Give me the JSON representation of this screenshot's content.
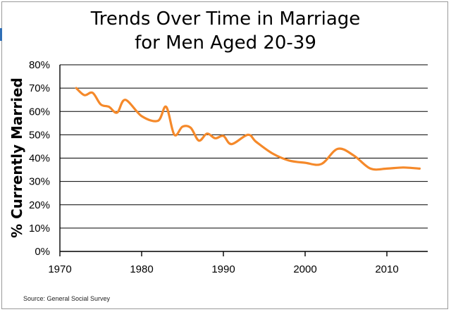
{
  "colors": {
    "line": "#f5892a",
    "grid": "#000000",
    "frame": "#9a9a9a"
  },
  "chart_data": {
    "type": "line",
    "title_lines": [
      "Trends Over Time in Marriage",
      "for Men Aged 20-39"
    ],
    "xlabel": "",
    "ylabel": "% Currently Married",
    "xlim": [
      1970,
      2015
    ],
    "ylim": [
      0,
      80
    ],
    "xticks": [
      1970,
      1980,
      1990,
      2000,
      2010
    ],
    "yticks": [
      0,
      10,
      20,
      30,
      40,
      50,
      60,
      70,
      80
    ],
    "ytick_labels": [
      "0%",
      "10%",
      "20%",
      "30%",
      "40%",
      "50%",
      "60%",
      "70%",
      "80%"
    ],
    "grid": true,
    "series": [
      {
        "x": [
          1972,
          1973,
          1974,
          1975,
          1976,
          1977,
          1978,
          1980,
          1982,
          1983,
          1984,
          1985,
          1986,
          1987,
          1988,
          1989,
          1990,
          1991,
          1993,
          1994,
          1996,
          1998,
          2000,
          2002,
          2004,
          2006,
          2008,
          2010,
          2012,
          2014
        ],
        "y": [
          70,
          67,
          68,
          63,
          62,
          59.5,
          65,
          58,
          56,
          62,
          50,
          53.5,
          53,
          47.5,
          50.5,
          48.5,
          49.5,
          46,
          50,
          47,
          42,
          39,
          38,
          37.5,
          44,
          41,
          35.5,
          35.5,
          36,
          35.5
        ]
      }
    ]
  },
  "source": "Source: General Social Survey"
}
